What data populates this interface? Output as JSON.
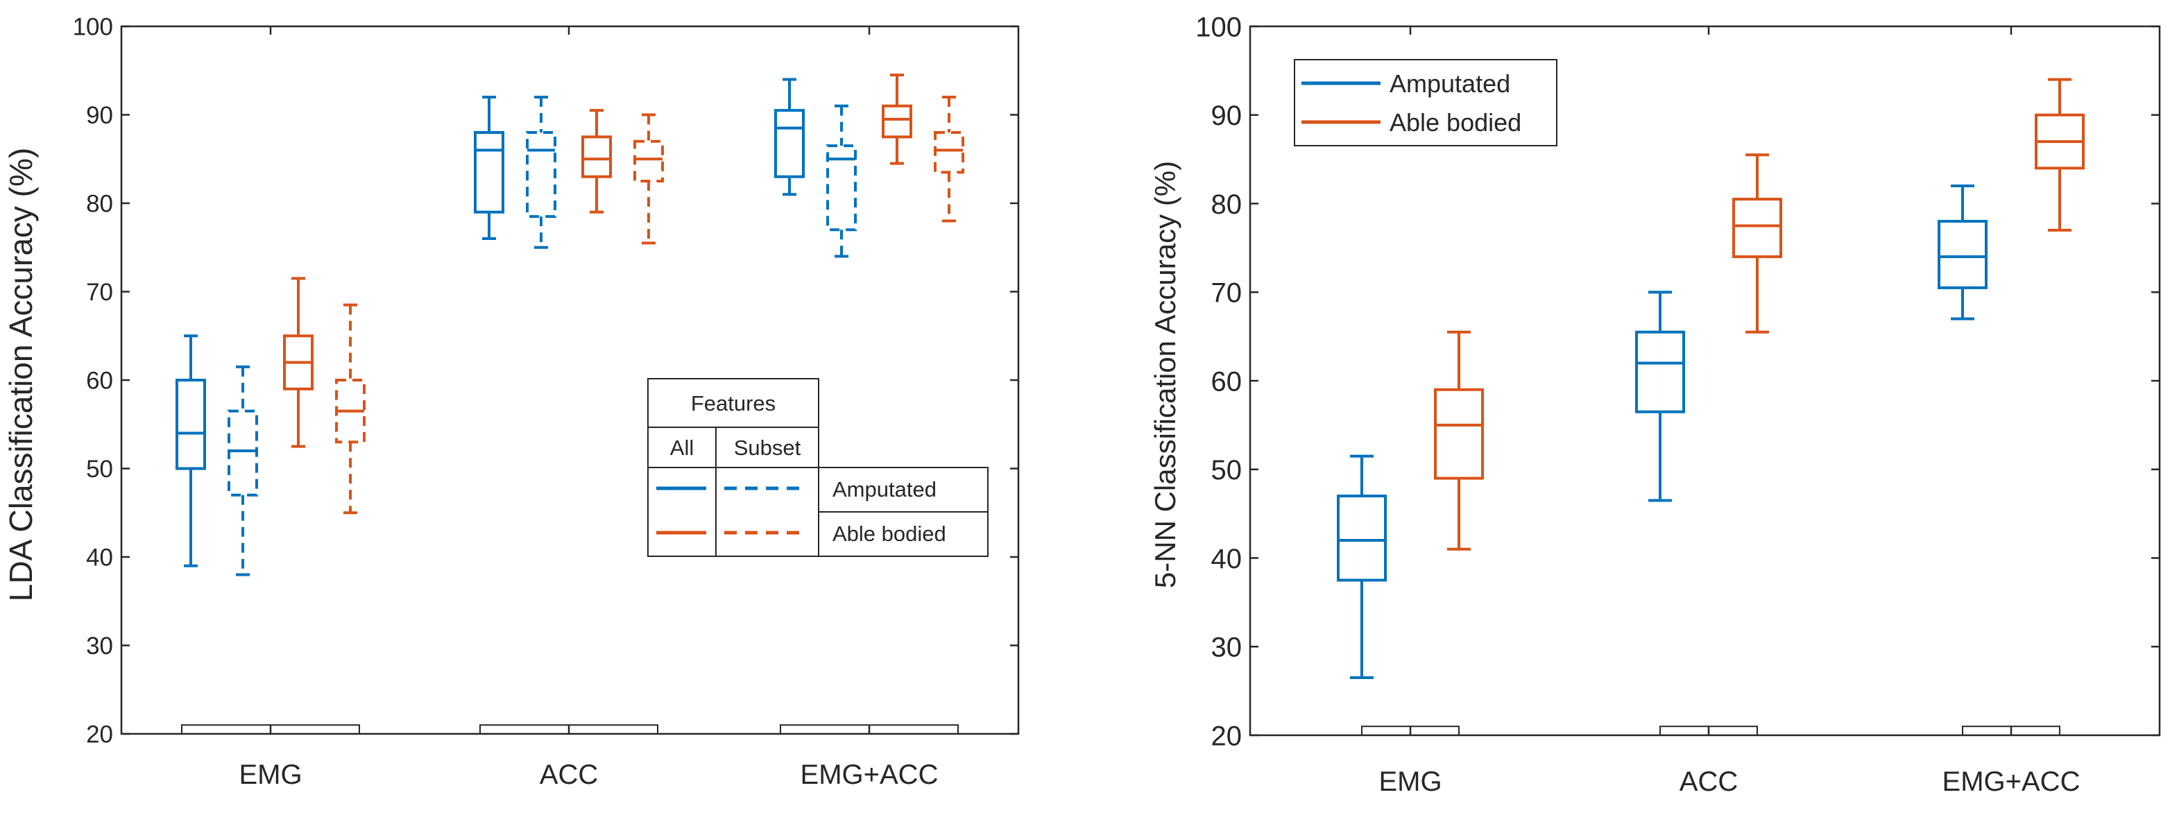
{
  "colors": {
    "amputated": "#0072BD",
    "able": "#D95319",
    "axis": "#262626",
    "legend_border": "#262626"
  },
  "chart_data": [
    {
      "type": "box",
      "title": "",
      "ylabel": "LDA Classification Accuracy (%)",
      "xlabel": "",
      "ylim": [
        20,
        100
      ],
      "yticks": [
        20,
        30,
        40,
        50,
        60,
        70,
        80,
        90,
        100
      ],
      "categories": [
        "EMG",
        "ACC",
        "EMG+ACC"
      ],
      "series": [
        {
          "name": "Amputated - All features",
          "group": "amputated",
          "style": "solid",
          "boxes": [
            {
              "category": "EMG",
              "min": 39,
              "q1": 50,
              "median": 54,
              "q3": 60,
              "max": 65
            },
            {
              "category": "ACC",
              "min": 76,
              "q1": 79,
              "median": 86,
              "q3": 88,
              "max": 92
            },
            {
              "category": "EMG+ACC",
              "min": 81,
              "q1": 83,
              "median": 88.5,
              "q3": 90.5,
              "max": 94
            }
          ]
        },
        {
          "name": "Amputated - Subset features",
          "group": "amputated",
          "style": "dashed",
          "boxes": [
            {
              "category": "EMG",
              "min": 38,
              "q1": 47,
              "median": 52,
              "q3": 56.5,
              "max": 61.5
            },
            {
              "category": "ACC",
              "min": 75,
              "q1": 78.5,
              "median": 86,
              "q3": 88,
              "max": 92
            },
            {
              "category": "EMG+ACC",
              "min": 74,
              "q1": 77,
              "median": 85,
              "q3": 86.5,
              "max": 91
            }
          ]
        },
        {
          "name": "Able bodied - All features",
          "group": "able",
          "style": "solid",
          "boxes": [
            {
              "category": "EMG",
              "min": 52.5,
              "q1": 59,
              "median": 62,
              "q3": 65,
              "max": 71.5
            },
            {
              "category": "ACC",
              "min": 79,
              "q1": 83,
              "median": 85,
              "q3": 87.5,
              "max": 90.5
            },
            {
              "category": "EMG+ACC",
              "min": 84.5,
              "q1": 87.5,
              "median": 89.5,
              "q3": 91,
              "max": 94.5
            }
          ]
        },
        {
          "name": "Able bodied - Subset features",
          "group": "able",
          "style": "dashed",
          "boxes": [
            {
              "category": "EMG",
              "min": 45,
              "q1": 53,
              "median": 56.5,
              "q3": 60,
              "max": 68.5
            },
            {
              "category": "ACC",
              "min": 75.5,
              "q1": 82.5,
              "median": 85,
              "q3": 87,
              "max": 90
            },
            {
              "category": "EMG+ACC",
              "min": 78,
              "q1": 83.5,
              "median": 86,
              "q3": 88,
              "max": 92
            }
          ]
        }
      ],
      "baseline_value": 21,
      "legend": {
        "placement": "center-right",
        "header": "Features",
        "columns": [
          "All",
          "Subset"
        ],
        "rows": [
          "Amputated",
          "Able bodied"
        ]
      }
    },
    {
      "type": "box",
      "title": "",
      "ylabel": "5-NN Classification Accuracy (%)",
      "xlabel": "",
      "ylim": [
        20,
        100
      ],
      "yticks": [
        20,
        30,
        40,
        50,
        60,
        70,
        80,
        90,
        100
      ],
      "categories": [
        "EMG",
        "ACC",
        "EMG+ACC"
      ],
      "series": [
        {
          "name": "Amputated",
          "group": "amputated",
          "style": "solid",
          "boxes": [
            {
              "category": "EMG",
              "min": 26.5,
              "q1": 37.5,
              "median": 42,
              "q3": 47,
              "max": 51.5
            },
            {
              "category": "ACC",
              "min": 46.5,
              "q1": 56.5,
              "median": 62,
              "q3": 65.5,
              "max": 70
            },
            {
              "category": "EMG+ACC",
              "min": 67,
              "q1": 70.5,
              "median": 74,
              "q3": 78,
              "max": 82
            }
          ]
        },
        {
          "name": "Able bodied",
          "group": "able",
          "style": "solid",
          "boxes": [
            {
              "category": "EMG",
              "min": 41,
              "q1": 49,
              "median": 55,
              "q3": 59,
              "max": 65.5
            },
            {
              "category": "ACC",
              "min": 65.5,
              "q1": 74,
              "median": 77.5,
              "q3": 80.5,
              "max": 85.5
            },
            {
              "category": "EMG+ACC",
              "min": 77,
              "q1": 84,
              "median": 87,
              "q3": 90,
              "max": 94
            }
          ]
        }
      ],
      "baseline_value": 21,
      "legend": {
        "placement": "top-left",
        "entries": [
          "Amputated",
          "Able bodied"
        ]
      }
    }
  ]
}
